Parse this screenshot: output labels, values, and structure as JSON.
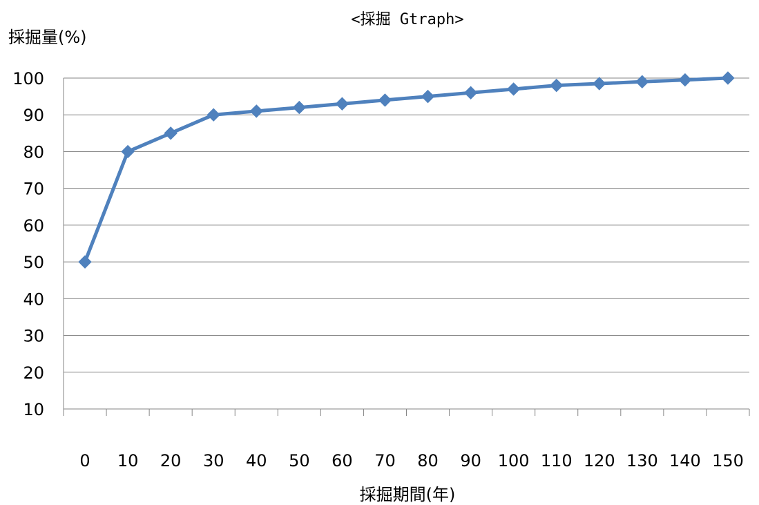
{
  "chart_data": {
    "type": "line",
    "title": "<採掘 Gtraph>",
    "xlabel": "採掘期間(年)",
    "ylabel": "採掘量(%)",
    "categories": [
      "0",
      "10",
      "20",
      "30",
      "40",
      "50",
      "60",
      "70",
      "80",
      "90",
      "100",
      "110",
      "120",
      "130",
      "140",
      "150"
    ],
    "series": [
      {
        "values": [
          50,
          80,
          85,
          90,
          91,
          92,
          93,
          94,
          95,
          96,
          97,
          98,
          98.5,
          99,
          99.5,
          100
        ]
      }
    ],
    "ylim": [
      10,
      100
    ],
    "yticks": [
      10,
      20,
      30,
      40,
      50,
      60,
      70,
      80,
      90,
      100
    ],
    "grid": true,
    "legend": "none",
    "line_color": "#4F81BD",
    "grid_color": "#868686",
    "axis_color": "#868686"
  }
}
